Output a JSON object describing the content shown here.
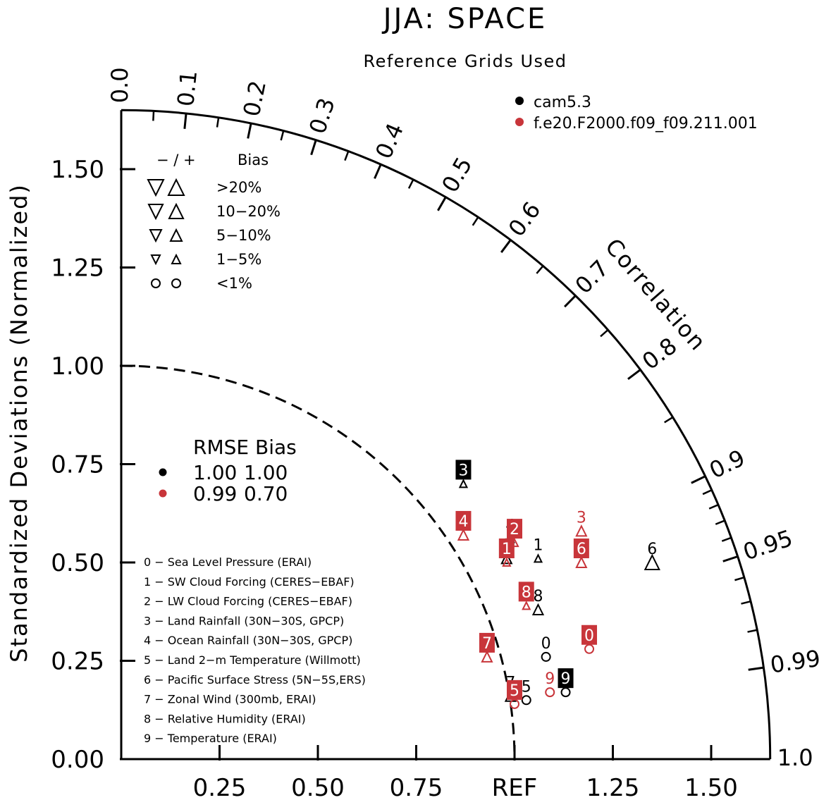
{
  "chart_data": {
    "type": "scatter",
    "title": "JJA: SPACE",
    "subtitle": "Reference Grids Used",
    "ylabel": "Standardized Deviations (Normalized)",
    "xlabel": "",
    "radial_label": "Correlation",
    "ref_label": "REF",
    "xlim": [
      0,
      1.65
    ],
    "ylim": [
      0,
      1.65
    ],
    "x_ticks": [
      "0.25",
      "0.50",
      "0.75",
      "REF",
      "1.25",
      "1.50"
    ],
    "x_tick_values": [
      0.25,
      0.5,
      0.75,
      1.0,
      1.25,
      1.5
    ],
    "y_ticks": [
      "0.00",
      "0.25",
      "0.50",
      "0.75",
      "1.00",
      "1.25",
      "1.50"
    ],
    "y_tick_values": [
      0,
      0.25,
      0.5,
      0.75,
      1.0,
      1.25,
      1.5
    ],
    "correlation_labels": [
      "0.0",
      "0.1",
      "0.2",
      "0.3",
      "0.4",
      "0.5",
      "0.6",
      "0.7",
      "0.8",
      "0.9",
      "0.95",
      "0.99",
      "1.0"
    ],
    "correlation_values": [
      0.0,
      0.1,
      0.2,
      0.3,
      0.4,
      0.5,
      0.6,
      0.7,
      0.8,
      0.9,
      0.95,
      0.99,
      1.0
    ],
    "ref_circle_radius": 1.0,
    "colors": {
      "cam5.3": "#000000",
      "f.e20.F2000.f09_f09.211.001": "#c8353a"
    },
    "series": [
      {
        "name": "cam5.3",
        "color": "#000000",
        "points": [
          {
            "label": "0",
            "x": 1.08,
            "y": 0.26,
            "marker": "circle"
          },
          {
            "label": "1",
            "x": 1.06,
            "y": 0.51,
            "marker": "up-small"
          },
          {
            "label": "2",
            "x": 0.98,
            "y": 0.51,
            "marker": "up-medium"
          },
          {
            "label": "3",
            "x": 0.87,
            "y": 0.7,
            "marker": "up-small",
            "boxed": true
          },
          {
            "label": "4",
            "x": 0.99,
            "y": 0.56,
            "marker": "up-small"
          },
          {
            "label": "5",
            "x": 1.03,
            "y": 0.15,
            "marker": "circle"
          },
          {
            "label": "6",
            "x": 1.35,
            "y": 0.5,
            "marker": "up-large"
          },
          {
            "label": "7",
            "x": 0.99,
            "y": 0.16,
            "marker": "up-medium"
          },
          {
            "label": "8",
            "x": 1.06,
            "y": 0.38,
            "marker": "up-medium"
          },
          {
            "label": "9",
            "x": 1.13,
            "y": 0.17,
            "marker": "circle",
            "boxed": true
          }
        ]
      },
      {
        "name": "f.e20.F2000.f09_f09.211.001",
        "color": "#c8353a",
        "points": [
          {
            "label": "0",
            "x": 1.19,
            "y": 0.28,
            "marker": "circle",
            "boxed": true
          },
          {
            "label": "1",
            "x": 0.98,
            "y": 0.5,
            "marker": "up-small",
            "boxed": true
          },
          {
            "label": "2",
            "x": 1.0,
            "y": 0.55,
            "marker": "up-small",
            "boxed": true
          },
          {
            "label": "3",
            "x": 1.17,
            "y": 0.58,
            "marker": "up-medium"
          },
          {
            "label": "4",
            "x": 0.87,
            "y": 0.57,
            "marker": "up-medium",
            "boxed": true
          },
          {
            "label": "5",
            "x": 1.0,
            "y": 0.14,
            "marker": "circle",
            "boxed": true
          },
          {
            "label": "6",
            "x": 1.17,
            "y": 0.5,
            "marker": "up-medium",
            "boxed": true
          },
          {
            "label": "7",
            "x": 0.93,
            "y": 0.26,
            "marker": "up-medium",
            "boxed": true
          },
          {
            "label": "8",
            "x": 1.03,
            "y": 0.39,
            "marker": "up-small",
            "boxed": true
          },
          {
            "label": "9",
            "x": 1.09,
            "y": 0.17,
            "marker": "circle"
          }
        ]
      }
    ],
    "legend": {
      "models": [
        "cam5.3",
        "f.e20.F2000.f09_f09.211.001"
      ],
      "bias_header": [
        "−  /  +",
        "Bias"
      ],
      "bias_rows": [
        ">20%",
        "10−20%",
        "5−10%",
        "1−5%",
        "<1%"
      ],
      "stats_header": "RMSE Bias",
      "stats_rows": [
        {
          "rmse": "1.00",
          "bias": "1.00",
          "color": "#000000"
        },
        {
          "rmse": "0.99",
          "bias": "0.70",
          "color": "#c8353a"
        }
      ],
      "categories": [
        "0 − Sea Level Pressure (ERAI)",
        "1 − SW Cloud Forcing (CERES−EBAF)",
        "2 − LW Cloud Forcing (CERES−EBAF)",
        "3 − Land Rainfall (30N−30S, GPCP)",
        "4 − Ocean Rainfall (30N−30S, GPCP)",
        "5 − Land 2−m Temperature (Willmott)",
        "6 − Pacific Surface Stress (5N−5S,ERS)",
        "7 − Zonal Wind (300mb, ERAI)",
        "8 − Relative Humidity (ERAI)",
        "9 − Temperature (ERAI)"
      ]
    }
  }
}
